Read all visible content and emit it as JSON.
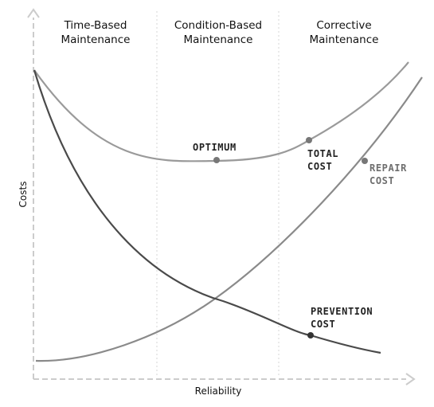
{
  "zones": [
    {
      "line1": "Time-Based",
      "line2": "Maintenance"
    },
    {
      "line1": "Condition-Based",
      "line2": "Maintenance"
    },
    {
      "line1": "Corrective",
      "line2": "Maintenance"
    }
  ],
  "curves": {
    "total": {
      "line1": "TOTAL",
      "line2": "COST"
    },
    "repair": {
      "line1": "REPAIR",
      "line2": "COST"
    },
    "prevention": {
      "line1": "PREVENTION",
      "line2": "COST"
    }
  },
  "optimum_label": "OPTIMUM",
  "axes": {
    "x_label": "Reliability",
    "y_label": "Costs"
  },
  "colors": {
    "total_cost_curve": "#9a9a9a",
    "repair_cost_curve": "#8a8a8a",
    "prevention_cost_curve": "#4a4a4a",
    "axis": "#cccccc",
    "zone_divider": "#d6d6d6",
    "marker": "#777777"
  }
}
